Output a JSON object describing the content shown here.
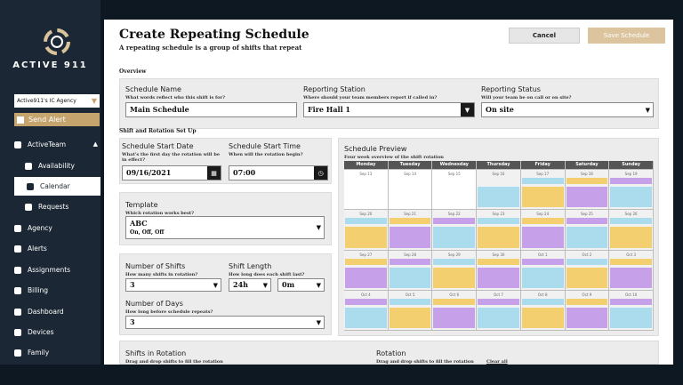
{
  "sidebar": {
    "brand": "ACTIVE 911",
    "agency": "Active911's IC Agency",
    "send_alert": "Send Alert",
    "menu": [
      "ActiveTeam",
      "Availability",
      "Calendar",
      "Requests",
      "Agency",
      "Alerts",
      "Assignments",
      "Billing",
      "Dashboard",
      "Devices",
      "Family"
    ]
  },
  "header": {
    "title": "Create Repeating Schedule",
    "subtitle": "A repeating schedule is a group of shifts that repeat",
    "cancel": "Cancel",
    "save": "Save Schedule"
  },
  "overview": {
    "heading": "Overview",
    "fields": [
      {
        "label": "Schedule Name",
        "hint": "What words reflect who this shift is for?",
        "value": "Main Schedule"
      },
      {
        "label": "Reporting Station",
        "hint": "Where should your team members report if called in?",
        "value": "Fire Hall 1"
      },
      {
        "label": "Reporting Status",
        "hint": "Will your team be on call or on site?",
        "value": "On site"
      }
    ]
  },
  "setup": {
    "heading": "Shift and Rotation Set Up",
    "start_date": {
      "label": "Schedule Start Date",
      "hint": "What's the first day the rotation will be in effect?",
      "value": "09/16/2021"
    },
    "start_time": {
      "label": "Schedule Start Time",
      "hint": "When will the rotation begin?",
      "value": "07:00"
    },
    "template": {
      "label": "Template",
      "hint": "Which rotation works best?",
      "value": "ABC",
      "detail": "On, Off, Off"
    },
    "shifts": {
      "label": "Number of Shifts",
      "hint": "How many shifts in rotation?",
      "value": "3"
    },
    "shift_length": {
      "label": "Shift Length",
      "hint": "How long does each shift last?",
      "hours": "24h",
      "minutes": "0m"
    },
    "days": {
      "label": "Number of Days",
      "hint": "How long before schedule repeats?",
      "value": "3"
    }
  },
  "preview": {
    "title": "Schedule Preview",
    "subtitle": "Four week overview of the shift rotation",
    "weekdays": [
      "Monday",
      "Tuesday",
      "Wednesday",
      "Thursday",
      "Friday",
      "Saturday",
      "Sunday"
    ],
    "weeks": [
      [
        "Sep 13",
        "Sep 14",
        "Sep 15",
        "Sep 16",
        "Sep 17",
        "Sep 18",
        "Sep 19"
      ],
      [
        "Sep 20",
        "Sep 21",
        "Sep 22",
        "Sep 23",
        "Sep 24",
        "Sep 25",
        "Sep 26"
      ],
      [
        "Sep 27",
        "Sep 28",
        "Sep 29",
        "Sep 30",
        "Oct 1",
        "Oct 2",
        "Oct 3"
      ],
      [
        "Oct 4",
        "Oct 5",
        "Oct 6",
        "Oct 7",
        "Oct 8",
        "Oct 9",
        "Oct 10"
      ]
    ]
  },
  "rotation": {
    "shifts_title": "Shifts in Rotation",
    "shifts_hint": "Drag and drop shifts to fill the rotation",
    "rotation_title": "Rotation",
    "rotation_hint": "Drag and drop shifts to fill the rotation",
    "clear": "Clear all"
  }
}
